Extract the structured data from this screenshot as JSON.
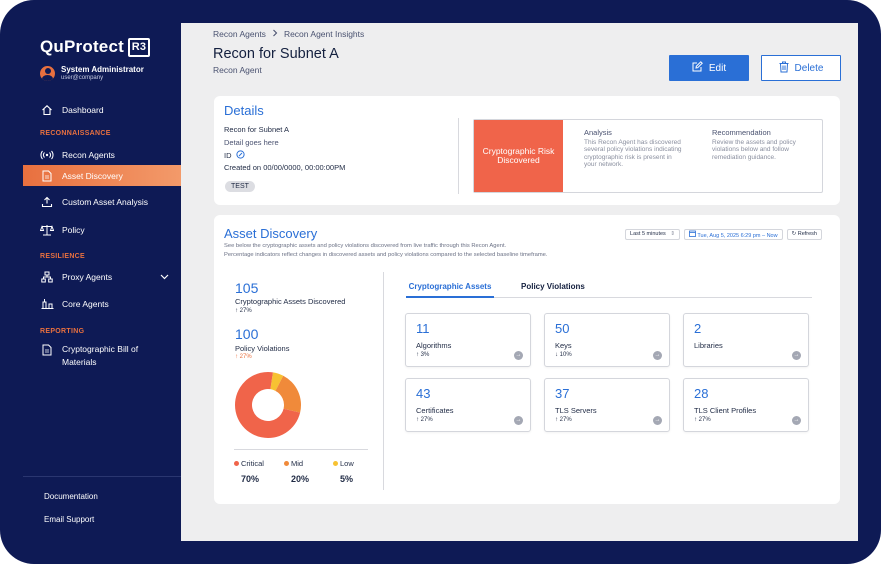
{
  "app": {
    "brand": "QuProtect",
    "brand_mark": "R3"
  },
  "user": {
    "name": "System Administrator",
    "email": "user@company"
  },
  "sidebar": {
    "dashboard": "Dashboard",
    "sections": {
      "reconnaissance": "RECONNAISSANCE",
      "resilience": "RESILIENCE",
      "reporting": "REPORTING"
    },
    "items": {
      "recon_agents": "Recon Agents",
      "asset_discovery": "Asset Discovery",
      "custom_asset_analysis": "Custom Asset Analysis",
      "policy": "Policy",
      "proxy_agents": "Proxy Agents",
      "core_agents": "Core Agents",
      "cbom_line1": "Cryptographic Bill of",
      "cbom_line2": "Materials"
    },
    "footer": {
      "documentation": "Documentation",
      "email_support": "Email Support"
    }
  },
  "breadcrumb": {
    "parent": "Recon Agents",
    "current": "Recon Agent Insights"
  },
  "header": {
    "title": "Recon for Subnet A",
    "subtitle": "Recon Agent",
    "edit_label": "Edit",
    "delete_label": "Delete"
  },
  "details": {
    "title": "Details",
    "name": "Recon for Subnet A",
    "description": "Detail goes here",
    "id_label": "ID",
    "created": "Created on 00/00/0000, 00:00:00PM",
    "tag": "TEST",
    "risk_title": "Cryptographic Risk Discovered",
    "analysis_heading": "Analysis",
    "analysis_text": "This Recon Agent has discovered several policy violations indicating cryptographic risk is present in your network.",
    "recommendation_heading": "Recommendation",
    "recommendation_text": "Review the assets and policy violations below and follow remediation guidance."
  },
  "asset_discovery": {
    "title": "Asset Discovery",
    "desc_line1": "See below the cryptographic assets and policy violations discovered from live traffic through this Recon Agent.",
    "desc_line2": "Percentage indicators reflect changes in discovered assets and policy violations compared to the selected baseline timeframe.",
    "timeframe": "Last 5 minutes",
    "date_range": "Tue, Aug 5, 2025 6:29 pm – Now",
    "refresh": "Refresh",
    "assets_count": "105",
    "assets_label": "Cryptographic Assets Discovered",
    "assets_change": "↑ 27%",
    "violations_count": "100",
    "violations_label": "Policy Violations",
    "violations_change": "↑ 27%",
    "legend": [
      {
        "label": "Critical",
        "pct": "70%",
        "value": 70,
        "color": "#f0644a"
      },
      {
        "label": "Mid",
        "pct": "20%",
        "value": 20,
        "color": "#f08a3a"
      },
      {
        "label": "Low",
        "pct": "5%",
        "value": 5,
        "color": "#f7c232"
      }
    ],
    "tabs": {
      "assets": "Cryptographic Assets",
      "violations": "Policy Violations"
    },
    "tiles": {
      "algorithms": {
        "count": "11",
        "label": "Algorithms",
        "change": "↑ 3%"
      },
      "keys": {
        "count": "50",
        "label": "Keys",
        "change": "↓ 10%"
      },
      "libraries": {
        "count": "2",
        "label": "Libraries",
        "change": ""
      },
      "certificates": {
        "count": "43",
        "label": "Certificates",
        "change": "↑ 27%"
      },
      "tls_servers": {
        "count": "37",
        "label": "TLS Servers",
        "change": "↑ 27%"
      },
      "tls_clients": {
        "count": "28",
        "label": "TLS Client Profiles",
        "change": "↑ 27%"
      }
    }
  },
  "icons": {
    "dashboard": "home-icon",
    "recon": "broadcast-icon",
    "asset": "document-icon",
    "custom": "upload-icon",
    "policy": "scales-icon",
    "proxy": "network-icon",
    "core": "server-icon",
    "cbom": "document-icon"
  }
}
